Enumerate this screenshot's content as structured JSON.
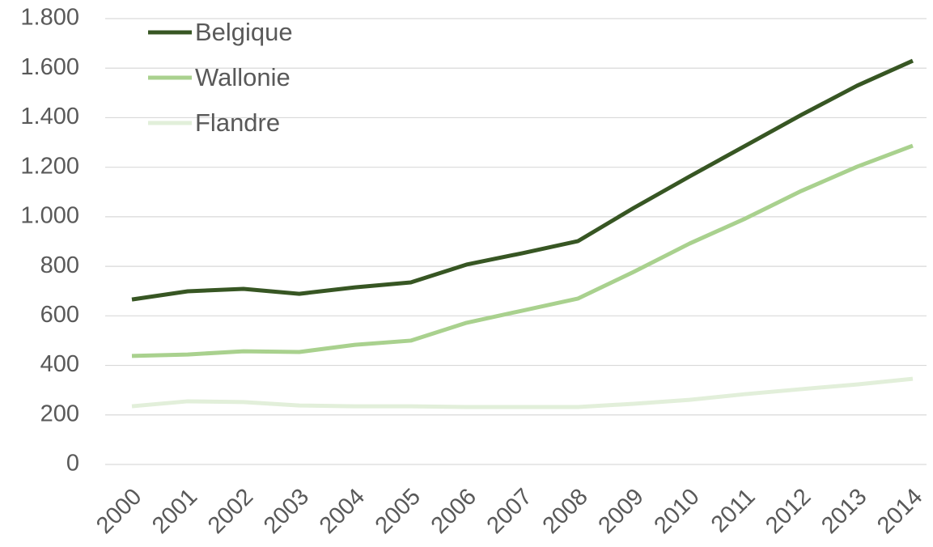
{
  "chart_data": {
    "type": "line",
    "categories": [
      "2000",
      "2001",
      "2002",
      "2003",
      "2004",
      "2005",
      "2006",
      "2007",
      "2008",
      "2009",
      "2010",
      "2011",
      "2012",
      "2013",
      "2014"
    ],
    "series": [
      {
        "name": "Belgique",
        "color": "#375623",
        "values": [
          666,
          699,
          709,
          689,
          715,
          735,
          807,
          853,
          902,
          1036,
          1163,
          1287,
          1411,
          1529,
          1630
        ]
      },
      {
        "name": "Wallonie",
        "color": "#a9d18e",
        "values": [
          438,
          444,
          457,
          454,
          483,
          500,
          572,
          621,
          670,
          778,
          892,
          993,
          1104,
          1202,
          1287
        ]
      },
      {
        "name": "Flandre",
        "color": "#e2efda",
        "values": [
          235,
          255,
          252,
          238,
          235,
          235,
          232,
          232,
          232,
          245,
          261,
          284,
          304,
          323,
          346
        ]
      }
    ],
    "ylim": [
      0,
      1800
    ],
    "yticks": [
      0,
      200,
      400,
      600,
      800,
      {
        "value": 1000,
        "label": "1.000"
      },
      {
        "value": 1200,
        "label": "1.200"
      },
      {
        "value": 1400,
        "label": "1.400"
      },
      {
        "value": 1600,
        "label": "1.600"
      },
      {
        "value": 1800,
        "label": "1.800"
      }
    ],
    "grid": true,
    "legend": "upper left"
  }
}
